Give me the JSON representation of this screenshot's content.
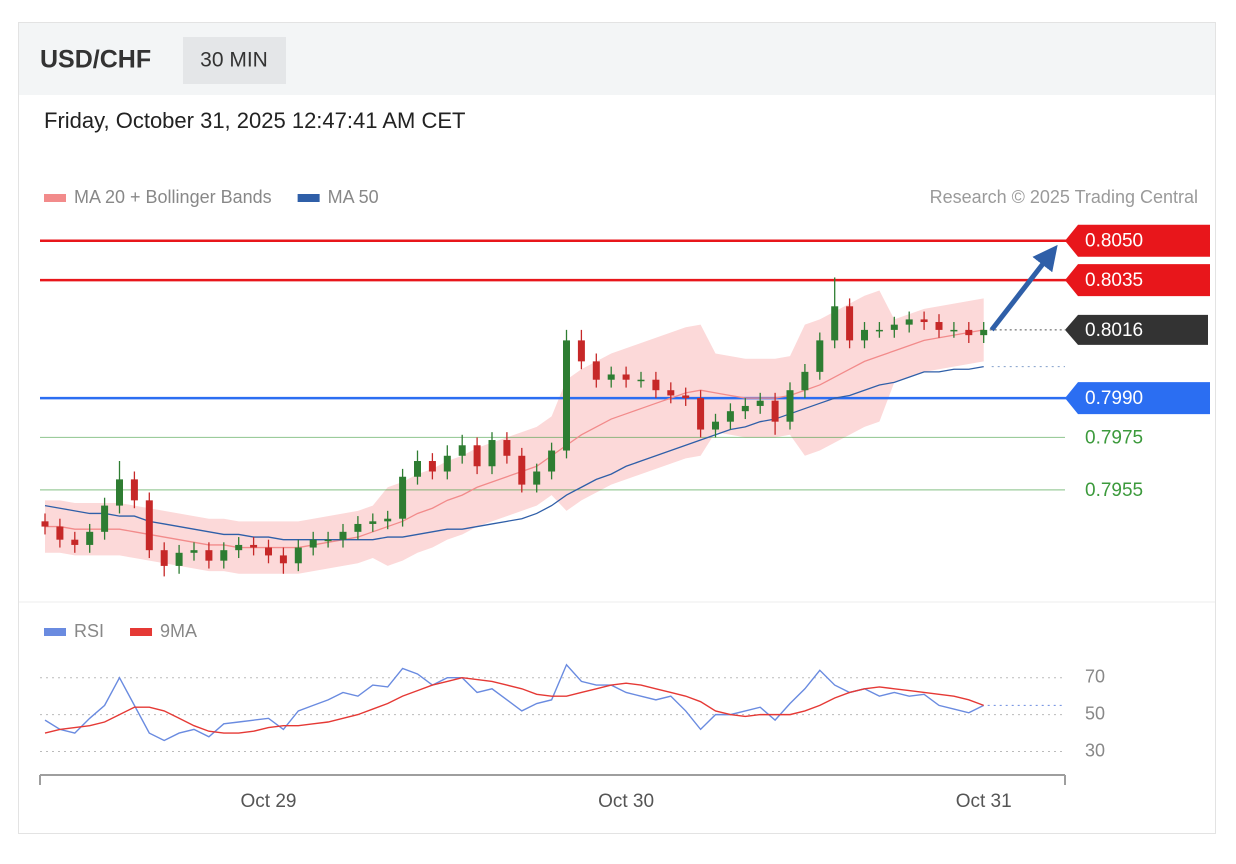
{
  "header": {
    "symbol": "USD/CHF",
    "interval": "30 MIN",
    "timestamp": "Friday, October 31, 2025 12:47:41 AM CET",
    "credit": "Research © 2025 Trading Central"
  },
  "chart_data": [
    {
      "type": "candlestick",
      "categories": [
        null,
        null,
        null,
        null,
        null,
        null,
        null,
        null,
        null,
        null,
        null,
        null,
        null,
        null,
        null,
        "Oct 29",
        null,
        null,
        null,
        null,
        null,
        null,
        null,
        null,
        null,
        null,
        null,
        null,
        null,
        null,
        null,
        null,
        null,
        null,
        null,
        null,
        null,
        null,
        null,
        "Oct 30",
        null,
        null,
        null,
        null,
        null,
        null,
        null,
        null,
        null,
        null,
        null,
        null,
        null,
        null,
        null,
        null,
        null,
        null,
        null,
        null,
        null,
        null,
        null,
        "Oct 31"
      ],
      "open": [
        0.7943,
        0.7941,
        0.7936,
        0.7934,
        0.7939,
        0.7949,
        0.7959,
        0.7951,
        0.7932,
        0.7926,
        0.7931,
        0.7932,
        0.7928,
        0.7932,
        0.7934,
        0.7933,
        0.793,
        0.7927,
        0.7933,
        0.7936,
        0.7936,
        0.7939,
        0.7942,
        0.7943,
        0.7944,
        0.796,
        0.7966,
        0.7962,
        0.7968,
        0.7972,
        0.7964,
        0.7974,
        0.7968,
        0.7957,
        0.7962,
        0.797,
        0.8012,
        0.8004,
        0.7997,
        0.7999,
        0.7997,
        0.7997,
        0.7993,
        0.7991,
        0.799,
        0.7978,
        0.7981,
        0.7985,
        0.7987,
        0.7989,
        0.7981,
        0.7993,
        0.8,
        0.8012,
        0.8025,
        0.8012,
        0.8016,
        0.8016,
        0.8018,
        0.802,
        0.8019,
        0.8016,
        0.8016,
        0.8014
      ],
      "high": [
        0.7946,
        0.7944,
        0.7939,
        0.7942,
        0.7952,
        0.7966,
        0.7962,
        0.7954,
        0.7935,
        0.7934,
        0.7935,
        0.7935,
        0.7935,
        0.7937,
        0.7937,
        0.7936,
        0.7933,
        0.7936,
        0.7939,
        0.7939,
        0.7942,
        0.7945,
        0.7946,
        0.7947,
        0.7963,
        0.797,
        0.7969,
        0.7972,
        0.7976,
        0.7975,
        0.7977,
        0.7977,
        0.7971,
        0.7965,
        0.7973,
        0.8016,
        0.8016,
        0.8007,
        0.8002,
        0.8002,
        0.8,
        0.8,
        0.7996,
        0.7994,
        0.7993,
        0.7984,
        0.7988,
        0.799,
        0.7992,
        0.7992,
        0.7996,
        0.8003,
        0.8015,
        0.8036,
        0.8028,
        0.8019,
        0.8019,
        0.8021,
        0.8023,
        0.8023,
        0.8022,
        0.8019,
        0.8019,
        0.8019
      ],
      "low": [
        0.7938,
        0.7933,
        0.7931,
        0.7931,
        0.7936,
        0.7946,
        0.7948,
        0.7929,
        0.7922,
        0.7923,
        0.7928,
        0.7925,
        0.7925,
        0.7929,
        0.793,
        0.7927,
        0.7923,
        0.7924,
        0.793,
        0.7933,
        0.7933,
        0.7936,
        0.7939,
        0.794,
        0.7941,
        0.7957,
        0.7959,
        0.7959,
        0.7965,
        0.7961,
        0.7961,
        0.7965,
        0.7954,
        0.7954,
        0.7959,
        0.7967,
        0.8001,
        0.7994,
        0.7994,
        0.7994,
        0.7994,
        0.799,
        0.7988,
        0.7987,
        0.7975,
        0.7975,
        0.7978,
        0.7982,
        0.7984,
        0.7976,
        0.7978,
        0.799,
        0.7997,
        0.8009,
        0.8009,
        0.8009,
        0.8013,
        0.8013,
        0.8015,
        0.8016,
        0.8013,
        0.8013,
        0.8011,
        0.8011
      ],
      "close": [
        0.7941,
        0.7936,
        0.7934,
        0.7939,
        0.7949,
        0.7959,
        0.7951,
        0.7932,
        0.7926,
        0.7931,
        0.7932,
        0.7928,
        0.7932,
        0.7934,
        0.7933,
        0.793,
        0.7927,
        0.7933,
        0.7936,
        0.7936,
        0.7939,
        0.7942,
        0.7943,
        0.7944,
        0.796,
        0.7966,
        0.7962,
        0.7968,
        0.7972,
        0.7964,
        0.7974,
        0.7968,
        0.7957,
        0.7962,
        0.797,
        0.8012,
        0.8004,
        0.7997,
        0.7999,
        0.7997,
        0.7997,
        0.7993,
        0.7991,
        0.799,
        0.7978,
        0.7981,
        0.7985,
        0.7987,
        0.7989,
        0.7981,
        0.7993,
        0.8,
        0.8012,
        0.8025,
        0.8012,
        0.8016,
        0.8016,
        0.8018,
        0.802,
        0.8019,
        0.8016,
        0.8016,
        0.8014,
        0.8016
      ],
      "up_color": "#2e7d32",
      "down_color": "#c62828",
      "ylim": [
        0.7913,
        0.8056
      ],
      "series": [
        {
          "name": "MA 20 + Bollinger Bands",
          "color": "#f28b8b",
          "band_color": "#fcd9d9",
          "values": [
            0.7941,
            0.7941,
            0.794,
            0.794,
            0.794,
            0.794,
            0.7939,
            0.7938,
            0.7937,
            0.7936,
            0.7935,
            0.7934,
            0.7934,
            0.7933,
            0.7933,
            0.7933,
            0.7933,
            0.7933,
            0.7934,
            0.7935,
            0.7936,
            0.7937,
            0.7939,
            0.7941,
            0.7943,
            0.7946,
            0.7948,
            0.7951,
            0.7953,
            0.7956,
            0.7958,
            0.796,
            0.7962,
            0.7964,
            0.7968,
            0.7972,
            0.7976,
            0.7979,
            0.7982,
            0.7984,
            0.7986,
            0.7988,
            0.799,
            0.7992,
            0.7993,
            0.7992,
            0.7991,
            0.799,
            0.799,
            0.799,
            0.7991,
            0.7993,
            0.7995,
            0.7998,
            0.8001,
            0.8004,
            0.8006,
            0.8008,
            0.801,
            0.8012,
            0.8013,
            0.8014,
            0.8015,
            0.8016
          ],
          "upper": [
            0.7951,
            0.7951,
            0.795,
            0.795,
            0.795,
            0.795,
            0.7949,
            0.7948,
            0.7947,
            0.7946,
            0.7945,
            0.7944,
            0.7944,
            0.7943,
            0.7943,
            0.7943,
            0.7943,
            0.7943,
            0.7944,
            0.7945,
            0.7946,
            0.7947,
            0.7949,
            0.7956,
            0.7958,
            0.7961,
            0.7963,
            0.7966,
            0.7968,
            0.7971,
            0.7973,
            0.7975,
            0.7977,
            0.7979,
            0.7983,
            0.7997,
            0.8001,
            0.8004,
            0.8007,
            0.8009,
            0.8011,
            0.8013,
            0.8015,
            0.8017,
            0.8018,
            0.8007,
            0.8006,
            0.8005,
            0.8005,
            0.8005,
            0.8006,
            0.8018,
            0.802,
            0.8023,
            0.8026,
            0.8029,
            0.8031,
            0.802,
            0.8022,
            0.8024,
            0.8025,
            0.8026,
            0.8027,
            0.8028
          ],
          "lower": [
            0.7931,
            0.7931,
            0.793,
            0.793,
            0.793,
            0.793,
            0.7929,
            0.7928,
            0.7927,
            0.7926,
            0.7925,
            0.7924,
            0.7924,
            0.7923,
            0.7923,
            0.7923,
            0.7923,
            0.7923,
            0.7924,
            0.7925,
            0.7926,
            0.7927,
            0.7929,
            0.7926,
            0.7928,
            0.7931,
            0.7933,
            0.7936,
            0.7938,
            0.7941,
            0.7943,
            0.7945,
            0.7947,
            0.7949,
            0.7953,
            0.7947,
            0.7951,
            0.7954,
            0.7957,
            0.7959,
            0.7961,
            0.7963,
            0.7965,
            0.7967,
            0.7968,
            0.7977,
            0.7976,
            0.7975,
            0.7975,
            0.7975,
            0.7976,
            0.7968,
            0.797,
            0.7973,
            0.7976,
            0.7979,
            0.7981,
            0.7996,
            0.7998,
            0.8,
            0.8001,
            0.8002,
            0.8003,
            0.8004
          ]
        },
        {
          "name": "MA 50",
          "color": "#2f5fa8",
          "values": [
            0.7949,
            0.7948,
            0.7947,
            0.7946,
            0.7946,
            0.7945,
            0.7945,
            0.7943,
            0.7942,
            0.7941,
            0.794,
            0.7939,
            0.7938,
            0.7938,
            0.7937,
            0.7937,
            0.7936,
            0.7936,
            0.7936,
            0.7936,
            0.7936,
            0.7936,
            0.7936,
            0.7937,
            0.7937,
            0.7938,
            0.7939,
            0.794,
            0.794,
            0.7941,
            0.7942,
            0.7943,
            0.7944,
            0.7946,
            0.7949,
            0.7953,
            0.7956,
            0.7959,
            0.7961,
            0.7964,
            0.7966,
            0.7968,
            0.797,
            0.7972,
            0.7974,
            0.7976,
            0.7978,
            0.7979,
            0.7981,
            0.7982,
            0.7984,
            0.7986,
            0.7988,
            0.799,
            0.7991,
            0.7993,
            0.7995,
            0.7996,
            0.7998,
            0.8,
            0.8,
            0.8001,
            0.8001,
            0.8002
          ]
        }
      ],
      "levels": [
        {
          "value": 0.805,
          "label": "0.8050",
          "color": "#e8161b",
          "tag": true
        },
        {
          "value": 0.8035,
          "label": "0.8035",
          "color": "#e8161b",
          "tag": true
        },
        {
          "value": 0.799,
          "label": "0.7990",
          "color": "#2b6ef2",
          "tag": true
        },
        {
          "value": 0.7975,
          "label": "0.7975",
          "color": "#3c9a3c",
          "tag": false
        },
        {
          "value": 0.7955,
          "label": "0.7955",
          "color": "#3c9a3c",
          "tag": false
        }
      ],
      "last": {
        "value": 0.8016,
        "label": "0.8016",
        "color": "#333333"
      },
      "target_arrow_color": "#2f5fa8"
    },
    {
      "type": "line",
      "ylim": [
        20,
        85
      ],
      "yticks": [
        30,
        50,
        70
      ],
      "series": [
        {
          "name": "RSI",
          "color": "#6a8be0",
          "values": [
            47,
            42,
            40,
            48,
            55,
            70,
            55,
            40,
            36,
            40,
            42,
            38,
            45,
            46,
            47,
            48,
            42,
            52,
            55,
            58,
            62,
            60,
            66,
            65,
            75,
            72,
            66,
            70,
            70,
            62,
            64,
            58,
            52,
            56,
            58,
            77,
            68,
            66,
            66,
            62,
            60,
            58,
            60,
            52,
            42,
            50,
            50,
            52,
            54,
            47,
            56,
            64,
            74,
            66,
            62,
            64,
            60,
            62,
            60,
            61,
            55,
            53,
            51,
            55
          ]
        },
        {
          "name": "9MA",
          "color": "#e53935",
          "values": [
            40,
            42,
            43,
            44,
            46,
            50,
            54,
            54,
            52,
            48,
            44,
            41,
            40,
            40,
            41,
            43,
            44,
            44,
            45,
            46,
            48,
            50,
            53,
            56,
            60,
            63,
            66,
            68,
            70,
            69,
            68,
            66,
            64,
            61,
            60,
            60,
            62,
            64,
            66,
            67,
            66,
            64,
            62,
            60,
            57,
            52,
            50,
            49,
            50,
            50,
            50,
            52,
            55,
            59,
            62,
            64,
            65,
            64,
            63,
            62,
            61,
            60,
            58,
            55
          ]
        }
      ]
    }
  ]
}
